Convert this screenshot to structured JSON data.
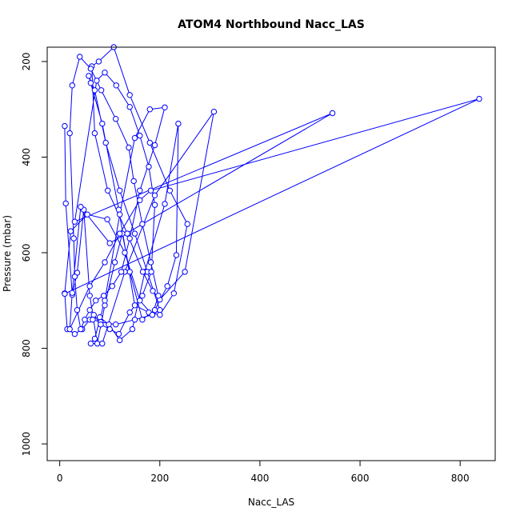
{
  "chart_data": {
    "type": "line",
    "title": "ATOM4 Northbound Nacc_LAS",
    "xlabel": "Nacc_LAS",
    "ylabel": "Pressure (mbar)",
    "xlim": [
      -25,
      870
    ],
    "ylim": [
      1035,
      170
    ],
    "y_reversed": true,
    "grid": false,
    "legend": "none",
    "xticks": [
      0,
      200,
      400,
      600,
      800
    ],
    "yticks": [
      200,
      400,
      600,
      800,
      1000
    ],
    "xtick_labels": [
      "0",
      "200",
      "400",
      "600",
      "800"
    ],
    "ytick_labels": [
      "200",
      "400",
      "600",
      "800",
      "1000"
    ],
    "series": [
      {
        "color": "#0000ff",
        "marker": "open-circle",
        "x": [
          10,
          12,
          25,
          35,
          48,
          60,
          75,
          90,
          110,
          125,
          140,
          165,
          190,
          215,
          233,
          237,
          210,
          170,
          145,
          120,
          98,
          80,
          60,
          45,
          30,
          15,
          10,
          22,
          55,
          95,
          130,
          160,
          185,
          200,
          175,
          150,
          120,
          92,
          70,
          58,
          62,
          85,
          118,
          150,
          178,
          200,
          228,
          255,
          220,
          180,
          140,
          108,
          78,
          64,
          70,
          96,
          135,
          166,
          186,
          200,
          250,
          308,
          190,
          130,
          85,
          62,
          70,
          90,
          120,
          150,
          180,
          210,
          190,
          160,
          140,
          123,
          105,
          88,
          72,
          60,
          50,
          42,
          35,
          30,
          28,
          20,
          25,
          40,
          62,
          83,
          112,
          138,
          148,
          165,
          182,
          197,
          185,
          150,
          112,
          82,
          66,
          68,
          82,
          100,
          118,
          140,
          165,
          183,
          190,
          178,
          160,
          140,
          113,
          90,
          74,
          30,
          545,
          100,
          42,
          25,
          20,
          60,
          90,
          120,
          160,
          182,
          838,
          10
        ],
        "y": [
          335,
          497,
          688,
          642,
          510,
          690,
          790,
          710,
          620,
          560,
          640,
          740,
          720,
          670,
          605,
          330,
          498,
          640,
          760,
          783,
          750,
          735,
          740,
          760,
          770,
          760,
          685,
          555,
          520,
          530,
          600,
          700,
          730,
          720,
          640,
          560,
          470,
          370,
          260,
          230,
          245,
          330,
          510,
          710,
          725,
          730,
          685,
          540,
          470,
          370,
          270,
          170,
          200,
          210,
          350,
          470,
          560,
          640,
          680,
          698,
          640,
          305,
          480,
          640,
          790,
          790,
          780,
          700,
          520,
          360,
          300,
          296,
          375,
          470,
          570,
          640,
          670,
          690,
          700,
          720,
          740,
          760,
          720,
          650,
          570,
          350,
          250,
          190,
          215,
          260,
          320,
          380,
          450,
          540,
          620,
          690,
          730,
          740,
          750,
          745,
          740,
          730,
          750,
          760,
          770,
          725,
          690,
          640,
          500,
          420,
          355,
          295,
          250,
          223,
          240,
          535,
          308,
          580,
          504,
          684,
          760,
          670,
          620,
          560,
          490,
          470,
          278,
          686
        ]
      },
      {
        "color": "#0000ff",
        "marker": "none",
        "x": [
          600,
          0
        ],
        "y": [
          170,
          170
        ]
      }
    ]
  }
}
